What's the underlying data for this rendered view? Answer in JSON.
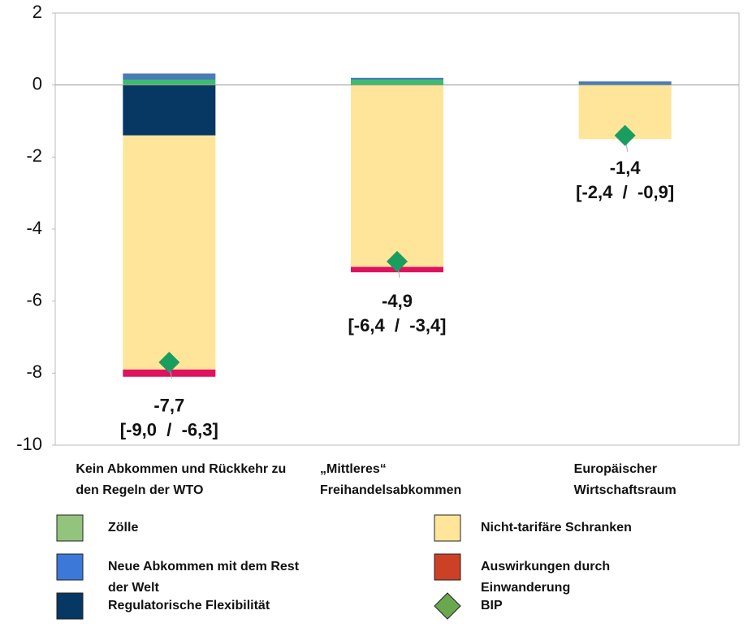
{
  "chart_data": {
    "type": "stacked_bar",
    "categories": [
      "Kein Abkommen und Rückkehr zu den Regeln der WTO",
      "„Mittleres“ Freihandelsabkommen",
      "Europäischer Wirtschaftsraum"
    ],
    "series": [
      {
        "name": "Zölle",
        "color": "#3dbb6f",
        "legend_color": "#93c47d",
        "values": [
          0.15,
          0.15,
          0
        ]
      },
      {
        "name": "Neue Abkommen mit dem Rest der Welt",
        "color": "#4a7bb7",
        "legend_color": "#3c78d8",
        "values": [
          0.17,
          0.05,
          0.1
        ]
      },
      {
        "name": "Regulatorische Flexibilität",
        "color": "#073763",
        "legend_color": "#073763",
        "values": [
          -1.4,
          0,
          0
        ]
      },
      {
        "name": "Nicht-tarifäre Schranken",
        "color": "#ffe599",
        "legend_color": "#ffe599",
        "values": [
          -6.5,
          -5.05,
          -1.5
        ]
      },
      {
        "name": "Auswirkungen durch Einwanderung",
        "color": "#e0115f",
        "legend_color": "#cc4125",
        "values": [
          -0.2,
          -0.15,
          0
        ]
      }
    ],
    "points": {
      "name": "BIP",
      "color": "#1a9e5f",
      "legend_color": "#6aa84f",
      "values": [
        -7.7,
        -4.9,
        -1.4
      ],
      "value_labels": [
        "-7,7",
        "-4,9",
        "-1,4"
      ],
      "intervals": [
        "[-9,0  /  -6,3]",
        "[-6,4  /  -3,4]",
        "[-2,4  /  -0,9]"
      ]
    },
    "ylim": [
      -10,
      2
    ],
    "yticks": [
      2,
      0,
      -2,
      -4,
      -6,
      -8,
      -10
    ]
  }
}
